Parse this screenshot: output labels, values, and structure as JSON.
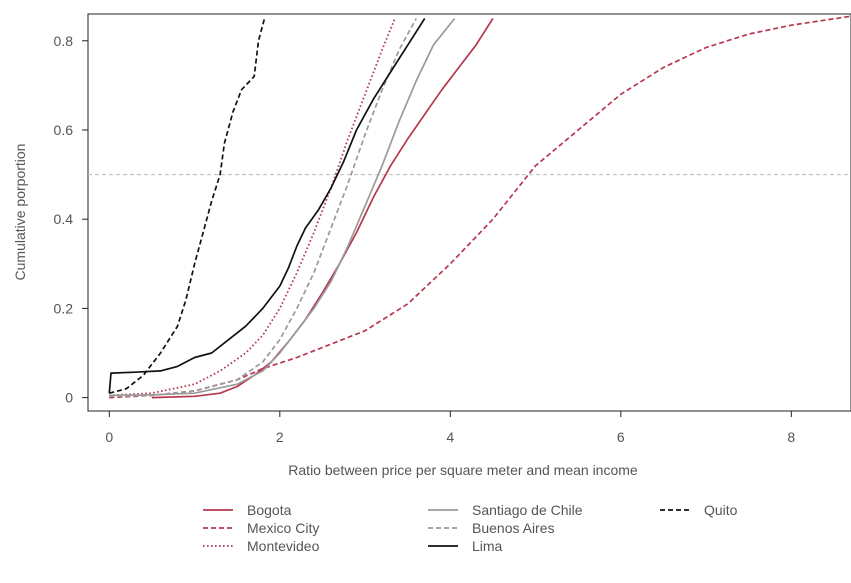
{
  "chart_data": {
    "type": "line",
    "title": "",
    "xlabel": "Ratio between price per square meter and mean income",
    "ylabel": "Cumulative porportion",
    "xlim": [
      -0.25,
      8.7
    ],
    "ylim": [
      -0.03,
      0.86
    ],
    "xticks": [
      0,
      2,
      4,
      6,
      8
    ],
    "yticks": [
      0,
      0.2,
      0.4,
      0.6,
      0.8
    ],
    "xtick_labels": [
      "0",
      "2",
      "4",
      "6",
      "8"
    ],
    "ytick_labels": [
      "0",
      "0.2",
      "0.4",
      "0.6",
      "0.8"
    ],
    "reference_line": {
      "y": 0.5,
      "style": "dashed",
      "color": "#bbbbbb"
    },
    "grid": false,
    "legend_position": "bottom",
    "series": [
      {
        "name": "Bogota",
        "color": "#b5384f",
        "dash": "solid",
        "points": [
          [
            0.5,
            0
          ],
          [
            1,
            0.003
          ],
          [
            1.3,
            0.01
          ],
          [
            1.5,
            0.025
          ],
          [
            1.7,
            0.05
          ],
          [
            1.9,
            0.08
          ],
          [
            2.1,
            0.125
          ],
          [
            2.3,
            0.175
          ],
          [
            2.5,
            0.235
          ],
          [
            2.7,
            0.3
          ],
          [
            2.9,
            0.37
          ],
          [
            3.1,
            0.45
          ],
          [
            3.3,
            0.52
          ],
          [
            3.5,
            0.58
          ],
          [
            3.7,
            0.635
          ],
          [
            3.9,
            0.69
          ],
          [
            4.1,
            0.74
          ],
          [
            4.3,
            0.79
          ],
          [
            4.5,
            0.85
          ]
        ]
      },
      {
        "name": "Mexico City",
        "color": "#b5384f",
        "dash": "dashed",
        "points": [
          [
            0,
            0
          ],
          [
            0.5,
            0.005
          ],
          [
            1,
            0.015
          ],
          [
            1.5,
            0.04
          ],
          [
            1.8,
            0.065
          ],
          [
            2.2,
            0.09
          ],
          [
            2.6,
            0.12
          ],
          [
            3,
            0.15
          ],
          [
            3.5,
            0.21
          ],
          [
            4,
            0.3
          ],
          [
            4.5,
            0.4
          ],
          [
            5,
            0.52
          ],
          [
            5.5,
            0.6
          ],
          [
            6,
            0.68
          ],
          [
            6.5,
            0.74
          ],
          [
            7,
            0.785
          ],
          [
            7.5,
            0.815
          ],
          [
            8,
            0.835
          ],
          [
            8.7,
            0.855
          ]
        ]
      },
      {
        "name": "Montevideo",
        "color": "#b5384f",
        "dash": "dotted",
        "points": [
          [
            0,
            0.005
          ],
          [
            0.5,
            0.01
          ],
          [
            1,
            0.03
          ],
          [
            1.3,
            0.06
          ],
          [
            1.6,
            0.1
          ],
          [
            1.8,
            0.14
          ],
          [
            2,
            0.2
          ],
          [
            2.2,
            0.28
          ],
          [
            2.4,
            0.37
          ],
          [
            2.6,
            0.47
          ],
          [
            2.8,
            0.58
          ],
          [
            3,
            0.68
          ],
          [
            3.2,
            0.78
          ],
          [
            3.35,
            0.85
          ]
        ]
      },
      {
        "name": "Santiago de Chile",
        "color": "#9a9a9a",
        "dash": "solid",
        "points": [
          [
            0,
            0.005
          ],
          [
            0.5,
            0.006
          ],
          [
            1,
            0.01
          ],
          [
            1.5,
            0.03
          ],
          [
            1.8,
            0.06
          ],
          [
            2,
            0.1
          ],
          [
            2.2,
            0.15
          ],
          [
            2.4,
            0.2
          ],
          [
            2.6,
            0.26
          ],
          [
            2.8,
            0.34
          ],
          [
            3,
            0.43
          ],
          [
            3.2,
            0.52
          ],
          [
            3.4,
            0.62
          ],
          [
            3.6,
            0.71
          ],
          [
            3.8,
            0.79
          ],
          [
            4.05,
            0.85
          ]
        ]
      },
      {
        "name": "Buenos Aires",
        "color": "#9a9a9a",
        "dash": "dashed",
        "points": [
          [
            0,
            0.003
          ],
          [
            0.5,
            0.005
          ],
          [
            1,
            0.015
          ],
          [
            1.5,
            0.04
          ],
          [
            1.8,
            0.08
          ],
          [
            2,
            0.13
          ],
          [
            2.2,
            0.2
          ],
          [
            2.4,
            0.28
          ],
          [
            2.6,
            0.38
          ],
          [
            2.8,
            0.48
          ],
          [
            3,
            0.59
          ],
          [
            3.2,
            0.69
          ],
          [
            3.4,
            0.78
          ],
          [
            3.6,
            0.85
          ]
        ]
      },
      {
        "name": "Lima",
        "color": "#111111",
        "dash": "solid",
        "points": [
          [
            0,
            0.01
          ],
          [
            0.02,
            0.055
          ],
          [
            0.3,
            0.057
          ],
          [
            0.6,
            0.06
          ],
          [
            0.8,
            0.07
          ],
          [
            1,
            0.09
          ],
          [
            1.2,
            0.1
          ],
          [
            1.4,
            0.13
          ],
          [
            1.6,
            0.16
          ],
          [
            1.8,
            0.2
          ],
          [
            2,
            0.25
          ],
          [
            2.1,
            0.29
          ],
          [
            2.2,
            0.34
          ],
          [
            2.3,
            0.38
          ],
          [
            2.45,
            0.42
          ],
          [
            2.6,
            0.47
          ],
          [
            2.75,
            0.53
          ],
          [
            2.9,
            0.6
          ],
          [
            3.1,
            0.67
          ],
          [
            3.3,
            0.73
          ],
          [
            3.5,
            0.79
          ],
          [
            3.7,
            0.85
          ]
        ]
      },
      {
        "name": "Quito",
        "color": "#111111",
        "dash": "dashed",
        "points": [
          [
            0,
            0.01
          ],
          [
            0.2,
            0.02
          ],
          [
            0.4,
            0.05
          ],
          [
            0.6,
            0.1
          ],
          [
            0.8,
            0.16
          ],
          [
            0.9,
            0.22
          ],
          [
            1,
            0.3
          ],
          [
            1.1,
            0.37
          ],
          [
            1.2,
            0.44
          ],
          [
            1.3,
            0.5
          ],
          [
            1.35,
            0.57
          ],
          [
            1.45,
            0.64
          ],
          [
            1.55,
            0.69
          ],
          [
            1.7,
            0.72
          ],
          [
            1.75,
            0.8
          ],
          [
            1.82,
            0.85
          ]
        ]
      }
    ]
  }
}
